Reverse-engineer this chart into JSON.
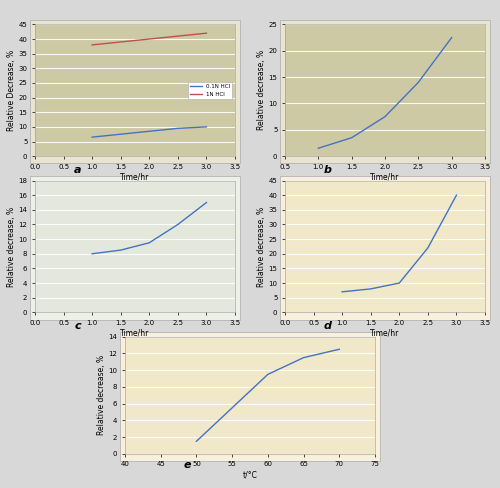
{
  "fig_width": 5.0,
  "fig_height": 4.88,
  "bg_color": "#d8d8d8",
  "a": {
    "xlabel": "Time/hr",
    "ylabel": "Relative Decrease, %",
    "xlim": [
      0,
      3.5
    ],
    "ylim": [
      0,
      45
    ],
    "xticks": [
      0,
      0.5,
      1,
      1.5,
      2,
      2.5,
      3,
      3.5
    ],
    "yticks": [
      0,
      5,
      10,
      15,
      20,
      25,
      30,
      35,
      40,
      45
    ],
    "bg_color": "#cdc9a5",
    "outer_bg": "#e8e4d0",
    "label_a": "a",
    "series1_x": [
      1.0,
      1.5,
      2.0,
      2.5,
      3.0
    ],
    "series1_y": [
      6.5,
      7.5,
      8.5,
      9.5,
      10.0
    ],
    "series1_color": "#4472c4",
    "series1_label": "0.1N HCl",
    "series2_x": [
      1.0,
      1.5,
      2.0,
      2.5,
      3.0
    ],
    "series2_y": [
      38.0,
      39.0,
      40.0,
      41.0,
      42.0
    ],
    "series2_color": "#c0504d",
    "series2_label": "1N HCl"
  },
  "b": {
    "xlabel": "Time/hr",
    "ylabel": "Relative decrease, %",
    "xlim": [
      0.5,
      3.5
    ],
    "ylim": [
      0,
      25
    ],
    "xticks": [
      0.5,
      1,
      1.5,
      2,
      2.5,
      3,
      3.5
    ],
    "yticks": [
      0,
      5,
      10,
      15,
      20,
      25
    ],
    "bg_color": "#cdc9a5",
    "outer_bg": "#e8e4d0",
    "label_b": "b",
    "series_x": [
      1.0,
      1.5,
      2.0,
      2.5,
      3.0
    ],
    "series_y": [
      1.5,
      3.5,
      7.5,
      14.0,
      22.5
    ],
    "series_color": "#4472c4"
  },
  "c": {
    "xlabel": "Time/hr",
    "ylabel": "Relative decrease, %",
    "xlim": [
      0,
      3.5
    ],
    "ylim": [
      0,
      18
    ],
    "xticks": [
      0,
      0.5,
      1,
      1.5,
      2,
      2.5,
      3,
      3.5
    ],
    "yticks": [
      0,
      2,
      4,
      6,
      8,
      10,
      12,
      14,
      16,
      18
    ],
    "bg_color": "#e4e8dc",
    "outer_bg": "#eef0e8",
    "label_c": "c",
    "series_x": [
      1.0,
      1.5,
      2.0,
      2.5,
      3.0
    ],
    "series_y": [
      8.0,
      8.5,
      9.5,
      12.0,
      15.0
    ],
    "series_color": "#4472c4"
  },
  "d": {
    "xlabel": "Time/hr",
    "ylabel": "Relative decrease, %",
    "xlim": [
      0,
      3.5
    ],
    "ylim": [
      0,
      45
    ],
    "xticks": [
      0,
      0.5,
      1,
      1.5,
      2,
      2.5,
      3,
      3.5
    ],
    "yticks": [
      0,
      5,
      10,
      15,
      20,
      25,
      30,
      35,
      40,
      45
    ],
    "bg_color": "#f0e8c8",
    "outer_bg": "#f8f0dc",
    "label_d": "d",
    "series_x": [
      1.0,
      1.5,
      2.0,
      2.5,
      3.0
    ],
    "series_y": [
      7.0,
      8.0,
      10.0,
      22.0,
      40.0
    ],
    "series_color": "#4472c4"
  },
  "e": {
    "xlabel": "t/°C",
    "ylabel": "Relative decrease, %",
    "xlim": [
      40,
      75
    ],
    "ylim": [
      0,
      14
    ],
    "xticks": [
      40,
      45,
      50,
      55,
      60,
      65,
      70,
      75
    ],
    "yticks": [
      0,
      2,
      4,
      6,
      8,
      10,
      12,
      14
    ],
    "bg_color": "#f0e8c8",
    "outer_bg": "#f8f0dc",
    "label_e": "e",
    "series_x": [
      50,
      55,
      60,
      65,
      70
    ],
    "series_y": [
      1.5,
      5.5,
      9.5,
      11.5,
      12.5
    ],
    "series_color": "#4472c4"
  }
}
